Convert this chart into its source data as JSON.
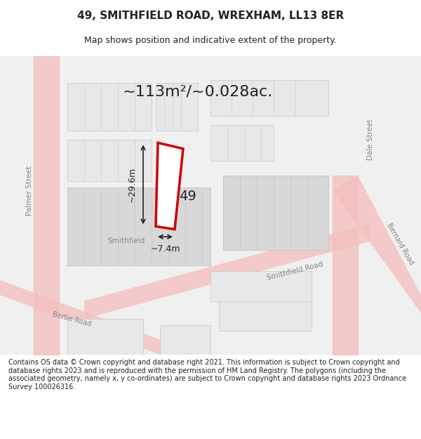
{
  "title_line1": "49, SMITHFIELD ROAD, WREXHAM, LL13 8ER",
  "title_line2": "Map shows position and indicative extent of the property.",
  "area_text": "~113m²/~0.028ac.",
  "label_49": "49",
  "dim_height": "~29.6m",
  "dim_width": "~7.4m",
  "footer_text": "Contains OS data © Crown copyright and database right 2021. This information is subject to Crown copyright and database rights 2023 and is reproduced with the permission of HM Land Registry. The polygons (including the associated geometry, namely x, y co-ordinates) are subject to Crown copyright and database rights 2023 Ordnance Survey 100026316.",
  "bg_color": "#ffffff",
  "map_bg": "#f5f5f5",
  "road_color_light": "#f5c0c0",
  "road_color_dark": "#e08080",
  "building_fill": "#e8e8e8",
  "building_stroke": "#d0d0d0",
  "highlight_fill": "#ffffff",
  "highlight_stroke": "#cc0000",
  "street_label_color": "#888888",
  "dim_line_color": "#222222",
  "text_color": "#222222"
}
